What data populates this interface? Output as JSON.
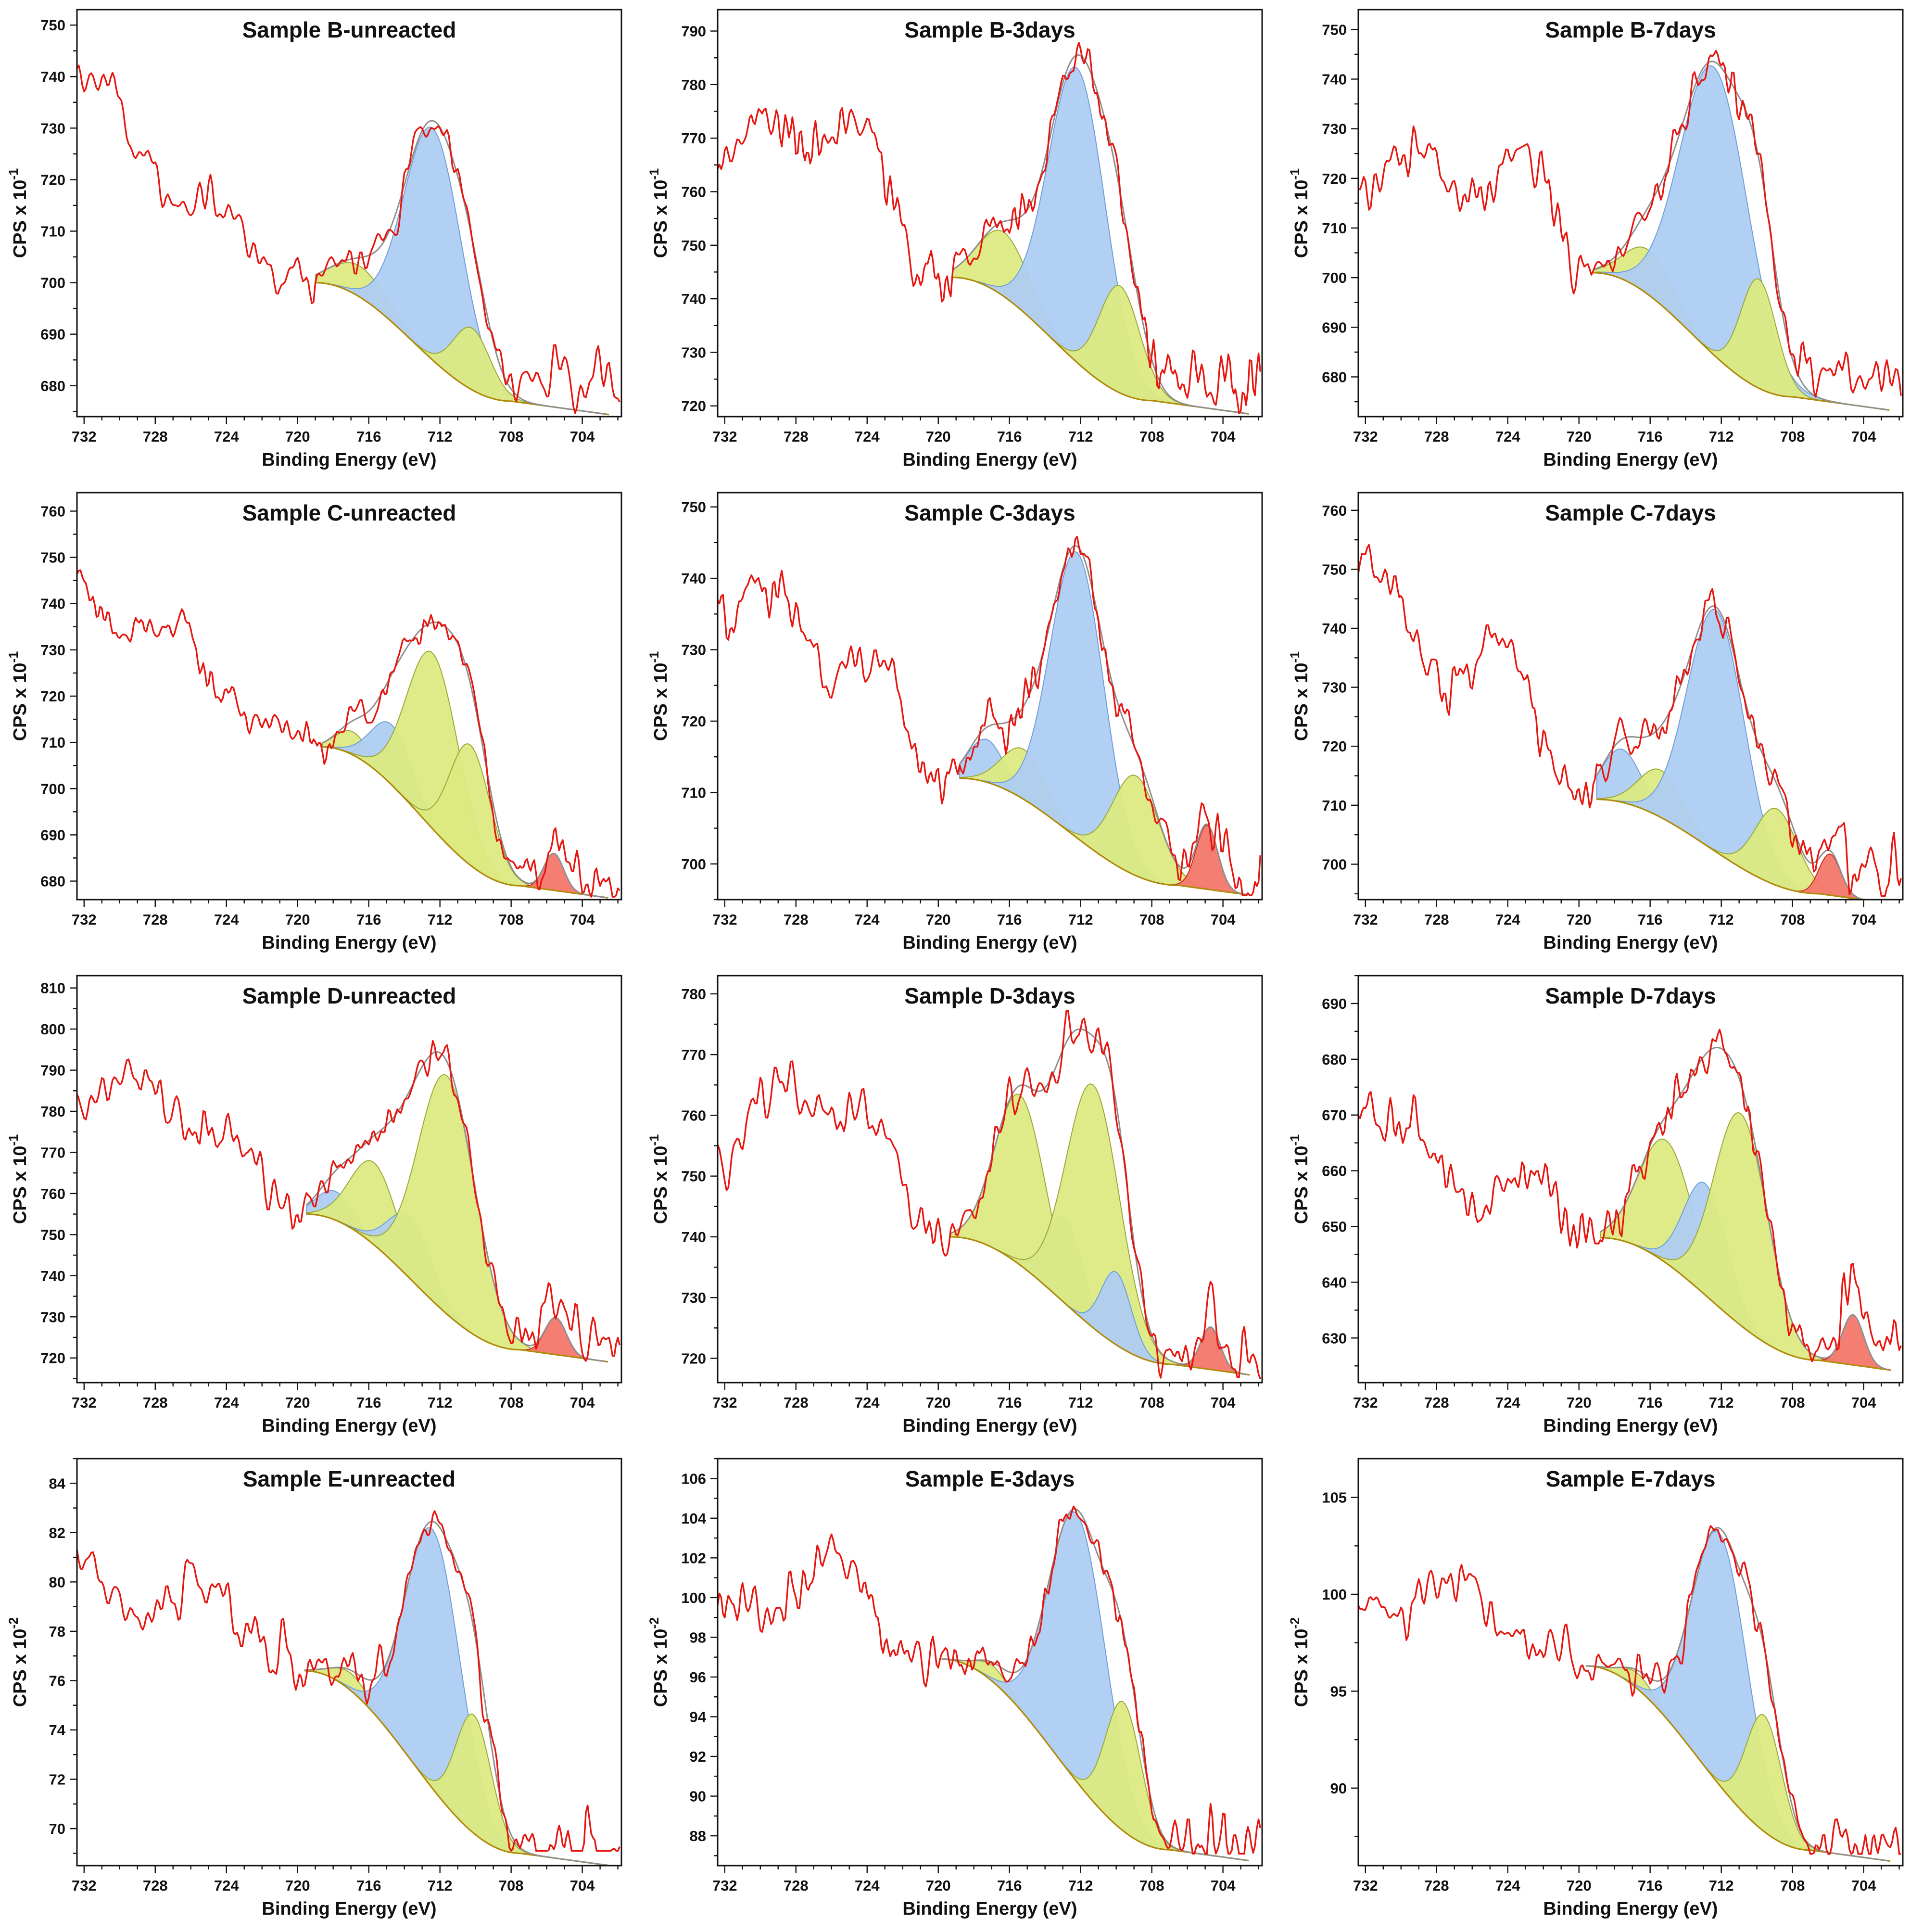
{
  "page": {
    "background": "#ffffff"
  },
  "palette": {
    "spectrum": "#e8150f",
    "envelope": "#8f8f8f",
    "baseline": "#b08a0a",
    "fill_blue": "#aecdf2",
    "fill_green": "#dcea82",
    "fill_red": "#f4776b",
    "edge_blue": "#6f9fd8",
    "edge_green": "#9aa83a",
    "edge_red": "#cc2a1e",
    "axis": "#111111"
  },
  "chart_data": [
    {
      "type": "line",
      "title": "Sample B-unreacted",
      "xlabel": "Binding Energy (eV)",
      "ylabel_base": "CPS x 10",
      "ylabel_exponent": "-1",
      "xlim": [
        732.4,
        701.8
      ],
      "x_major_ticks": [
        732,
        728,
        724,
        720,
        716,
        712,
        708,
        704
      ],
      "ylim": [
        674,
        753
      ],
      "y_major_ticks": [
        680,
        690,
        700,
        710,
        720,
        730,
        740,
        750
      ],
      "y_minor_step": 5,
      "model": {
        "left_edge_y": 738,
        "left_mid_y": 716,
        "left_swing": 5,
        "fit_start": {
          "x": 719.0,
          "y": 700
        },
        "fit_end": {
          "x": 708.0,
          "y": 677
        },
        "tail_y": 683,
        "noise_amp": 2.3,
        "seed": 101,
        "peaks": [
          {
            "center": 716.5,
            "height": 6,
            "width": 1.5,
            "color": "green"
          },
          {
            "center": 712.4,
            "height": 45,
            "width": 1.6,
            "color": "blue"
          },
          {
            "center": 710.2,
            "height": 12,
            "width": 1.05,
            "color": "green"
          }
        ]
      }
    },
    {
      "type": "line",
      "title": "Sample B-3days",
      "xlabel": "Binding Energy (eV)",
      "ylabel_base": "CPS x 10",
      "ylabel_exponent": "-1",
      "xlim": [
        732.4,
        701.8
      ],
      "x_major_ticks": [
        732,
        728,
        724,
        720,
        716,
        712,
        708,
        704
      ],
      "ylim": [
        718,
        794
      ],
      "y_major_ticks": [
        720,
        730,
        740,
        750,
        760,
        770,
        780,
        790
      ],
      "y_minor_step": 5,
      "model": {
        "left_edge_y": 768,
        "left_mid_y": 770,
        "left_swing": 7,
        "fit_start": {
          "x": 719.2,
          "y": 744
        },
        "fit_end": {
          "x": 708.0,
          "y": 721
        },
        "tail_y": 726,
        "noise_amp": 2.4,
        "seed": 102,
        "peaks": [
          {
            "center": 716.3,
            "height": 12,
            "width": 1.4,
            "color": "green"
          },
          {
            "center": 712.2,
            "height": 55,
            "width": 1.6,
            "color": "blue"
          },
          {
            "center": 709.8,
            "height": 20,
            "width": 1.15,
            "color": "green"
          }
        ]
      }
    },
    {
      "type": "line",
      "title": "Sample B-7days",
      "xlabel": "Binding Energy (eV)",
      "ylabel_base": "CPS x 10",
      "ylabel_exponent": "-1",
      "xlim": [
        732.4,
        701.8
      ],
      "x_major_ticks": [
        732,
        728,
        724,
        720,
        716,
        712,
        708,
        704
      ],
      "ylim": [
        672,
        754
      ],
      "y_major_ticks": [
        680,
        690,
        700,
        710,
        720,
        730,
        740,
        750
      ],
      "y_minor_step": 5,
      "model": {
        "left_edge_y": 722,
        "left_mid_y": 725,
        "left_swing": 9,
        "fit_start": {
          "x": 719.2,
          "y": 701
        },
        "fit_end": {
          "x": 708.0,
          "y": 676
        },
        "tail_y": 682,
        "noise_amp": 2.5,
        "seed": 103,
        "peaks": [
          {
            "center": 716.1,
            "height": 9,
            "width": 1.3,
            "color": "green"
          },
          {
            "center": 712.4,
            "height": 58,
            "width": 1.9,
            "color": "blue"
          },
          {
            "center": 709.9,
            "height": 22,
            "width": 1.0,
            "color": "green"
          }
        ]
      }
    },
    {
      "type": "line",
      "title": "Sample C-unreacted",
      "xlabel": "Binding Energy (eV)",
      "ylabel_base": "CPS x 10",
      "ylabel_exponent": "-1",
      "xlim": [
        732.4,
        701.8
      ],
      "x_major_ticks": [
        732,
        728,
        724,
        720,
        716,
        712,
        708,
        704
      ],
      "ylim": [
        676,
        764
      ],
      "y_major_ticks": [
        680,
        690,
        700,
        710,
        720,
        730,
        740,
        750,
        760
      ],
      "y_minor_step": 5,
      "model": {
        "left_edge_y": 748,
        "left_mid_y": 724,
        "left_swing": 7,
        "fit_start": {
          "x": 718.6,
          "y": 709
        },
        "fit_end": {
          "x": 707.5,
          "y": 679
        },
        "tail_y": 682,
        "noise_amp": 2.4,
        "seed": 104,
        "peaks": [
          {
            "center": 716.9,
            "height": 5,
            "width": 0.9,
            "color": "green"
          },
          {
            "center": 714.7,
            "height": 13,
            "width": 1.15,
            "color": "blue"
          },
          {
            "center": 712.4,
            "height": 38,
            "width": 1.45,
            "color": "green"
          },
          {
            "center": 710.3,
            "height": 26,
            "width": 1.15,
            "color": "green"
          },
          {
            "center": 705.6,
            "height": 8,
            "width": 0.55,
            "color": "red"
          }
        ]
      }
    },
    {
      "type": "line",
      "title": "Sample C-3days",
      "xlabel": "Binding Energy (eV)",
      "ylabel_base": "CPS x 10",
      "ylabel_exponent": "-1",
      "xlim": [
        732.4,
        701.8
      ],
      "x_major_ticks": [
        732,
        728,
        724,
        720,
        716,
        712,
        708,
        704
      ],
      "ylim": [
        695,
        752
      ],
      "y_major_ticks": [
        700,
        710,
        720,
        730,
        740,
        750
      ],
      "y_minor_step": 5,
      "model": {
        "left_edge_y": 743,
        "left_mid_y": 727,
        "left_swing": 6,
        "fit_start": {
          "x": 718.8,
          "y": 712
        },
        "fit_end": {
          "x": 706.5,
          "y": 697
        },
        "tail_y": 699,
        "noise_amp": 1.9,
        "seed": 105,
        "peaks": [
          {
            "center": 717.3,
            "height": 6,
            "width": 1.0,
            "color": "blue"
          },
          {
            "center": 715.2,
            "height": 7,
            "width": 1.2,
            "color": "green"
          },
          {
            "center": 712.2,
            "height": 40,
            "width": 1.5,
            "color": "blue"
          },
          {
            "center": 708.9,
            "height": 14,
            "width": 1.3,
            "color": "green"
          },
          {
            "center": 704.9,
            "height": 9,
            "width": 0.6,
            "color": "red"
          }
        ]
      }
    },
    {
      "type": "line",
      "title": "Sample C-7days",
      "xlabel": "Binding Energy (eV)",
      "ylabel_base": "CPS x 10",
      "ylabel_exponent": "-1",
      "xlim": [
        732.4,
        701.8
      ],
      "x_major_ticks": [
        732,
        728,
        724,
        720,
        716,
        712,
        708,
        704
      ],
      "ylim": [
        694,
        763
      ],
      "y_major_ticks": [
        700,
        710,
        720,
        730,
        740,
        750,
        760
      ],
      "y_minor_step": 5,
      "model": {
        "left_edge_y": 751,
        "left_mid_y": 733,
        "left_swing": 7,
        "fit_start": {
          "x": 719.0,
          "y": 711
        },
        "fit_end": {
          "x": 706.5,
          "y": 695
        },
        "tail_y": 700,
        "noise_amp": 2.2,
        "seed": 106,
        "peaks": [
          {
            "center": 717.6,
            "height": 9,
            "width": 1.1,
            "color": "blue"
          },
          {
            "center": 715.4,
            "height": 8,
            "width": 1.2,
            "color": "green"
          },
          {
            "center": 712.3,
            "height": 41,
            "width": 1.6,
            "color": "blue"
          },
          {
            "center": 708.9,
            "height": 13,
            "width": 1.2,
            "color": "green"
          },
          {
            "center": 705.9,
            "height": 7,
            "width": 0.6,
            "color": "red"
          }
        ]
      }
    },
    {
      "type": "line",
      "title": "Sample D-unreacted",
      "xlabel": "Binding Energy (eV)",
      "ylabel_base": "CPS x 10",
      "ylabel_exponent": "-1",
      "xlim": [
        732.4,
        701.8
      ],
      "x_major_ticks": [
        732,
        728,
        724,
        720,
        716,
        712,
        708,
        704
      ],
      "ylim": [
        714,
        813
      ],
      "y_major_ticks": [
        720,
        730,
        740,
        750,
        760,
        770,
        780,
        790,
        800,
        810
      ],
      "y_minor_step": 5,
      "model": {
        "left_edge_y": 785,
        "left_mid_y": 779,
        "left_swing": 6,
        "fit_start": {
          "x": 719.5,
          "y": 755
        },
        "fit_end": {
          "x": 707.5,
          "y": 722
        },
        "tail_y": 727,
        "noise_amp": 2.6,
        "seed": 107,
        "peaks": [
          {
            "center": 717.9,
            "height": 7,
            "width": 1.0,
            "color": "blue"
          },
          {
            "center": 715.7,
            "height": 20,
            "width": 1.3,
            "color": "green"
          },
          {
            "center": 713.7,
            "height": 15,
            "width": 1.2,
            "color": "blue"
          },
          {
            "center": 711.6,
            "height": 58,
            "width": 1.6,
            "color": "green"
          },
          {
            "center": 705.5,
            "height": 9,
            "width": 0.6,
            "color": "red"
          }
        ]
      }
    },
    {
      "type": "line",
      "title": "Sample D-3days",
      "xlabel": "Binding Energy (eV)",
      "ylabel_base": "CPS x 10",
      "ylabel_exponent": "-1",
      "xlim": [
        732.4,
        701.8
      ],
      "x_major_ticks": [
        732,
        728,
        724,
        720,
        716,
        712,
        708,
        704
      ],
      "ylim": [
        716,
        783
      ],
      "y_major_ticks": [
        720,
        730,
        740,
        750,
        760,
        770,
        780
      ],
      "y_minor_step": 5,
      "model": {
        "left_edge_y": 756,
        "left_mid_y": 762,
        "left_swing": 6,
        "fit_start": {
          "x": 719.3,
          "y": 740
        },
        "fit_end": {
          "x": 706.8,
          "y": 719
        },
        "tail_y": 721,
        "noise_amp": 2.2,
        "seed": 108,
        "peaks": [
          {
            "center": 715.4,
            "height": 28,
            "width": 1.4,
            "color": "green"
          },
          {
            "center": 712.9,
            "height": 14,
            "width": 1.0,
            "color": "blue"
          },
          {
            "center": 711.3,
            "height": 40,
            "width": 1.5,
            "color": "green"
          },
          {
            "center": 710.0,
            "height": 12,
            "width": 0.85,
            "color": "blue"
          },
          {
            "center": 704.7,
            "height": 7,
            "width": 0.55,
            "color": "red"
          }
        ]
      }
    },
    {
      "type": "line",
      "title": "Sample D-7days",
      "xlabel": "Binding Energy (eV)",
      "ylabel_base": "CPS x 10",
      "ylabel_exponent": "-1",
      "xlim": [
        732.4,
        701.8
      ],
      "x_major_ticks": [
        732,
        728,
        724,
        720,
        716,
        712,
        708,
        704
      ],
      "ylim": [
        622,
        695
      ],
      "y_major_ticks": [
        630,
        640,
        650,
        660,
        670,
        680,
        690
      ],
      "y_minor_step": 5,
      "model": {
        "left_edge_y": 674,
        "left_mid_y": 658,
        "left_swing": 5,
        "fit_start": {
          "x": 718.8,
          "y": 648
        },
        "fit_end": {
          "x": 706.5,
          "y": 626
        },
        "tail_y": 631,
        "noise_amp": 2.3,
        "seed": 109,
        "peaks": [
          {
            "center": 715.1,
            "height": 22,
            "width": 1.5,
            "color": "green"
          },
          {
            "center": 712.9,
            "height": 20,
            "width": 1.2,
            "color": "blue"
          },
          {
            "center": 710.9,
            "height": 38,
            "width": 1.5,
            "color": "green"
          },
          {
            "center": 704.6,
            "height": 9,
            "width": 0.6,
            "color": "red"
          }
        ]
      }
    },
    {
      "type": "line",
      "title": "Sample E-unreacted",
      "xlabel": "Binding Energy (eV)",
      "ylabel_base": "CPS x 10",
      "ylabel_exponent": "-2",
      "xlim": [
        732.4,
        701.8
      ],
      "x_major_ticks": [
        732,
        728,
        724,
        720,
        716,
        712,
        708,
        704
      ],
      "ylim": [
        68.5,
        85
      ],
      "y_major_ticks": [
        70,
        72,
        74,
        76,
        78,
        80,
        82,
        84
      ],
      "y_minor_step": 1,
      "model": {
        "left_edge_y": 80.0,
        "left_mid_y": 79.6,
        "left_swing": 1.1,
        "fit_start": {
          "x": 719.6,
          "y": 76.4
        },
        "fit_end": {
          "x": 707.5,
          "y": 69.0
        },
        "tail_y": 69.4,
        "noise_amp": 0.55,
        "seed": 110,
        "peaks": [
          {
            "center": 717.0,
            "height": 0.7,
            "width": 1.0,
            "color": "green"
          },
          {
            "center": 712.4,
            "height": 10.5,
            "width": 1.55,
            "color": "blue"
          },
          {
            "center": 710.1,
            "height": 4.8,
            "width": 1.0,
            "color": "green"
          }
        ]
      }
    },
    {
      "type": "line",
      "title": "Sample E-3days",
      "xlabel": "Binding Energy (eV)",
      "ylabel_base": "CPS x 10",
      "ylabel_exponent": "-2",
      "xlim": [
        732.4,
        701.8
      ],
      "x_major_ticks": [
        732,
        728,
        724,
        720,
        716,
        712,
        708,
        704
      ],
      "ylim": [
        86.5,
        107
      ],
      "y_major_ticks": [
        88,
        90,
        92,
        94,
        96,
        98,
        100,
        102,
        104,
        106
      ],
      "y_minor_step": 1,
      "model": {
        "left_edge_y": 99.3,
        "left_mid_y": 100.6,
        "left_swing": 1.5,
        "fit_start": {
          "x": 719.8,
          "y": 96.9
        },
        "fit_end": {
          "x": 707.0,
          "y": 87.3
        },
        "tail_y": 88.0,
        "noise_amp": 0.62,
        "seed": 111,
        "peaks": [
          {
            "center": 716.9,
            "height": 0.8,
            "width": 0.9,
            "color": "green"
          },
          {
            "center": 712.2,
            "height": 13.5,
            "width": 1.6,
            "color": "blue"
          },
          {
            "center": 709.6,
            "height": 6.5,
            "width": 1.0,
            "color": "green"
          }
        ]
      }
    },
    {
      "type": "line",
      "title": "Sample E-7days",
      "xlabel": "Binding Energy (eV)",
      "ylabel_base": "CPS x 10",
      "ylabel_exponent": "-2",
      "xlim": [
        732.4,
        701.8
      ],
      "x_major_ticks": [
        732,
        728,
        724,
        720,
        716,
        712,
        708,
        704
      ],
      "ylim": [
        86,
        107
      ],
      "y_major_ticks": [
        90,
        95,
        100,
        105
      ],
      "y_minor_step": 2.5,
      "model": {
        "left_edge_y": 98.8,
        "left_mid_y": 100.2,
        "left_swing": 1.4,
        "fit_start": {
          "x": 719.6,
          "y": 96.3
        },
        "fit_end": {
          "x": 707.0,
          "y": 86.8
        },
        "tail_y": 87.4,
        "noise_amp": 0.62,
        "seed": 112,
        "peaks": [
          {
            "center": 716.7,
            "height": 0.8,
            "width": 0.9,
            "color": "green"
          },
          {
            "center": 712.1,
            "height": 13.0,
            "width": 1.55,
            "color": "blue"
          },
          {
            "center": 709.6,
            "height": 6.0,
            "width": 1.0,
            "color": "green"
          }
        ]
      }
    }
  ]
}
